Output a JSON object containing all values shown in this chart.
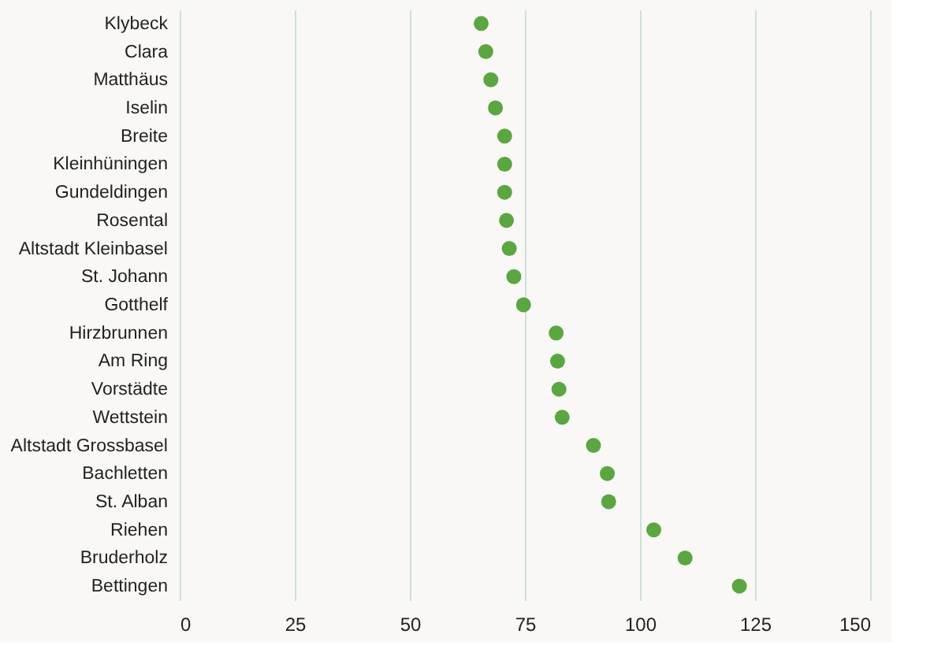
{
  "chart_data": {
    "type": "scatter",
    "categories": [
      "Klybeck",
      "Clara",
      "Matthäus",
      "Iselin",
      "Breite",
      "Kleinhüningen",
      "Gundeldingen",
      "Rosental",
      "Altstadt Kleinbasel",
      "St. Johann",
      "Gotthelf",
      "Hirzbrunnen",
      "Am Ring",
      "Vorstädte",
      "Wettstein",
      "Altstadt Grossbasel",
      "Bachletten",
      "St. Alban",
      "Riehen",
      "Bruderholz",
      "Bettingen"
    ],
    "orientation": "horizontal",
    "values": [
      65.5,
      66.5,
      67.6,
      68.6,
      70.6,
      70.6,
      70.6,
      71,
      71.6,
      72.6,
      74.7,
      81.8,
      82.1,
      82.4,
      83.1,
      89.9,
      92.9,
      93.2,
      103,
      109.8,
      121.6
    ],
    "color": "#5aa641",
    "xlim": [
      0,
      150
    ],
    "xticks": [
      0,
      25,
      50,
      75,
      100,
      125,
      150
    ],
    "grid": "x",
    "marker": "circle"
  }
}
